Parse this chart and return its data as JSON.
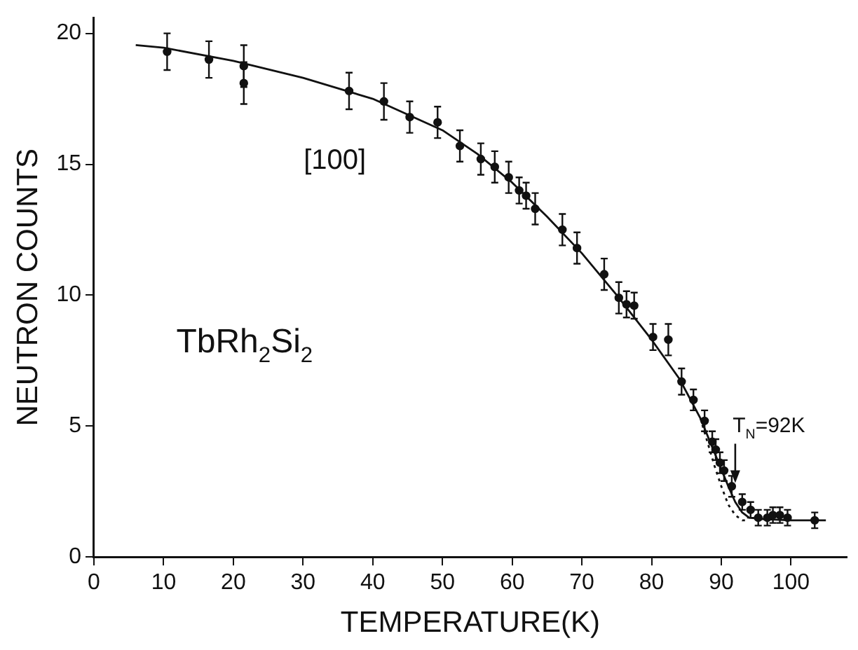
{
  "chart_data": {
    "type": "scatter",
    "xlabel": "TEMPERATURE(K)",
    "ylabel": "NEUTRON COUNTS",
    "xlim": [
      0,
      108
    ],
    "ylim": [
      0,
      20.6
    ],
    "xticks": [
      0,
      10,
      20,
      30,
      40,
      50,
      60,
      70,
      80,
      90,
      100
    ],
    "yticks": [
      0,
      5,
      10,
      15,
      20
    ],
    "grid": false,
    "legend": false,
    "marker": "circle",
    "annotations": [
      {
        "text": "[100]"
      },
      {
        "text": "TbRh$_{2}$Si$_{2}$"
      },
      {
        "text": "T$_{N}$=92K",
        "x": 92,
        "y": 2.4
      }
    ],
    "series": [
      {
        "color": "#111111",
        "x": [
          10.5,
          16.5,
          21.5,
          21.5,
          36.6,
          41.6,
          45.3,
          49.3,
          52.5,
          55.5,
          57.5,
          59.5,
          61,
          62,
          63.3,
          67.2,
          69.3,
          73.2,
          75.3,
          76.4,
          77.5,
          80.2,
          82.4,
          84.3,
          86,
          87.6,
          88.7,
          89.2,
          89.8,
          90.4,
          91.5,
          93,
          94.2,
          95.3,
          96.6,
          97.4,
          98.4,
          99.5,
          103.4
        ],
        "values": [
          19.3,
          19,
          18.75,
          18.1,
          17.8,
          17.4,
          16.8,
          16.6,
          15.7,
          15.2,
          14.9,
          14.5,
          14,
          13.8,
          13.3,
          12.5,
          11.8,
          10.8,
          9.9,
          9.65,
          9.6,
          8.4,
          8.3,
          6.7,
          6,
          5.2,
          4.4,
          4.1,
          3.6,
          3.3,
          2.7,
          2.1,
          1.8,
          1.5,
          1.5,
          1.6,
          1.6,
          1.5,
          1.4
        ],
        "errors": [
          0.7,
          0.7,
          0.8,
          0.8,
          0.7,
          0.7,
          0.6,
          0.6,
          0.6,
          0.6,
          0.6,
          0.6,
          0.5,
          0.5,
          0.6,
          0.6,
          0.6,
          0.6,
          0.6,
          0.5,
          0.5,
          0.5,
          0.6,
          0.5,
          0.4,
          0.4,
          0.4,
          0.4,
          0.4,
          0.4,
          0.4,
          0.3,
          0.3,
          0.3,
          0.3,
          0.3,
          0.3,
          0.3,
          0.3
        ]
      },
      {
        "type": "line",
        "color": "#111111",
        "line_style": "solid",
        "marker": "none",
        "x": [
          6,
          10,
          20,
          30,
          40,
          50,
          55,
          60,
          65,
          70,
          75,
          80,
          84,
          87,
          89,
          91,
          92,
          93,
          94,
          96,
          100,
          105
        ],
        "values": [
          19.55,
          19.45,
          18.95,
          18.3,
          17.5,
          16.3,
          15.4,
          14.3,
          13,
          11.6,
          10,
          8.3,
          6.8,
          5.3,
          4,
          2.7,
          2.1,
          1.7,
          1.5,
          1.45,
          1.4,
          1.4
        ]
      },
      {
        "type": "line",
        "color": "#111111",
        "line_style": "dotted",
        "marker": "none",
        "x": [
          87,
          88,
          89,
          90,
          91,
          92,
          93,
          94
        ],
        "values": [
          5.3,
          4.4,
          3.5,
          2.7,
          2,
          1.6,
          1.4,
          1.4
        ]
      }
    ]
  }
}
